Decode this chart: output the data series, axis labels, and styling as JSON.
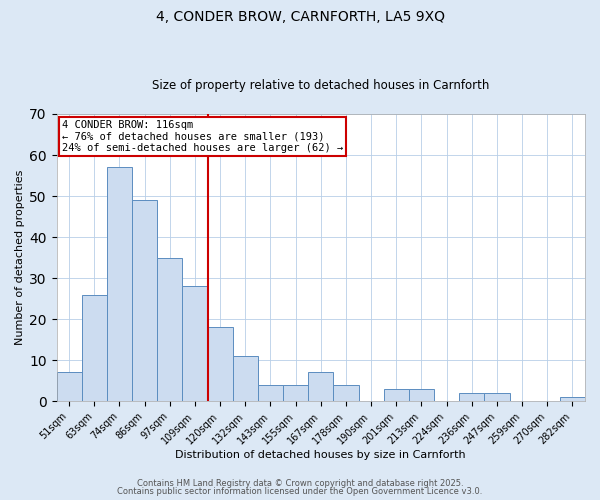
{
  "title": "4, CONDER BROW, CARNFORTH, LA5 9XQ",
  "subtitle": "Size of property relative to detached houses in Carnforth",
  "xlabel": "Distribution of detached houses by size in Carnforth",
  "ylabel": "Number of detached properties",
  "bar_labels": [
    "51sqm",
    "63sqm",
    "74sqm",
    "86sqm",
    "97sqm",
    "109sqm",
    "120sqm",
    "132sqm",
    "143sqm",
    "155sqm",
    "167sqm",
    "178sqm",
    "190sqm",
    "201sqm",
    "213sqm",
    "224sqm",
    "236sqm",
    "247sqm",
    "259sqm",
    "270sqm",
    "282sqm"
  ],
  "bar_values": [
    7,
    26,
    57,
    49,
    35,
    28,
    18,
    11,
    4,
    4,
    7,
    4,
    0,
    3,
    3,
    0,
    2,
    2,
    0,
    0,
    1
  ],
  "bar_color": "#ccdcf0",
  "bar_edge_color": "#5b8dc0",
  "vline_x_index": 6,
  "vline_color": "#cc0000",
  "ylim": [
    0,
    70
  ],
  "yticks": [
    0,
    10,
    20,
    30,
    40,
    50,
    60,
    70
  ],
  "annotation_text": "4 CONDER BROW: 116sqm\n← 76% of detached houses are smaller (193)\n24% of semi-detached houses are larger (62) →",
  "annotation_box_color": "#cc0000",
  "footer1": "Contains HM Land Registry data © Crown copyright and database right 2025.",
  "footer2": "Contains public sector information licensed under the Open Government Licence v3.0.",
  "bg_color": "#dce8f5",
  "plot_bg_color": "#ffffff",
  "grid_color": "#b8cfe8",
  "title_fontsize": 10,
  "subtitle_fontsize": 8.5,
  "axis_label_fontsize": 8,
  "tick_fontsize": 7,
  "annotation_fontsize": 7.5,
  "footer_fontsize": 6
}
